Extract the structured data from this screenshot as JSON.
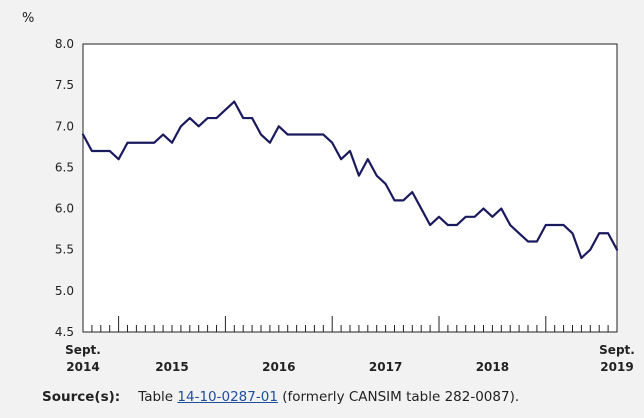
{
  "chart_data": {
    "type": "line",
    "title": "",
    "ylabel": "%",
    "xlabel": "",
    "ylim": [
      4.5,
      8.0
    ],
    "yticks": [
      4.5,
      5.0,
      5.5,
      6.0,
      6.5,
      7.0,
      7.5,
      8.0
    ],
    "ytick_labels": [
      "4.5",
      "5.0",
      "5.5",
      "6.0",
      "6.5",
      "7.0",
      "7.5",
      "8.0"
    ],
    "x_range": [
      "2014-09",
      "2019-09"
    ],
    "x_labels": [
      {
        "month": "2014-09",
        "line1": "Sept.",
        "line2": "2014"
      },
      {
        "month": "2015-07",
        "line1": "",
        "line2": "2015"
      },
      {
        "month": "2016-07",
        "line1": "",
        "line2": "2016"
      },
      {
        "month": "2017-07",
        "line1": "",
        "line2": "2017"
      },
      {
        "month": "2018-07",
        "line1": "",
        "line2": "2018"
      },
      {
        "month": "2019-09",
        "line1": "Sept.",
        "line2": "2019"
      }
    ],
    "year_boundaries": [
      "2015-01",
      "2016-01",
      "2017-01",
      "2018-01",
      "2019-01"
    ],
    "grid": false,
    "color": "#1a1a5e",
    "series": [
      {
        "x": [
          "2014-09",
          "2014-10",
          "2014-11",
          "2014-12",
          "2015-01",
          "2015-02",
          "2015-03",
          "2015-04",
          "2015-05",
          "2015-06",
          "2015-07",
          "2015-08",
          "2015-09",
          "2015-10",
          "2015-11",
          "2015-12",
          "2016-01",
          "2016-02",
          "2016-03",
          "2016-04",
          "2016-05",
          "2016-06",
          "2016-07",
          "2016-08",
          "2016-09",
          "2016-10",
          "2016-11",
          "2016-12",
          "2017-01",
          "2017-02",
          "2017-03",
          "2017-04",
          "2017-05",
          "2017-06",
          "2017-07",
          "2017-08",
          "2017-09",
          "2017-10",
          "2017-11",
          "2017-12",
          "2018-01",
          "2018-02",
          "2018-03",
          "2018-04",
          "2018-05",
          "2018-06",
          "2018-07",
          "2018-08",
          "2018-09",
          "2018-10",
          "2018-11",
          "2018-12",
          "2019-01",
          "2019-02",
          "2019-03",
          "2019-04",
          "2019-05",
          "2019-06",
          "2019-07",
          "2019-08",
          "2019-09"
        ],
        "values": [
          6.9,
          6.7,
          6.7,
          6.7,
          6.6,
          6.8,
          6.8,
          6.8,
          6.8,
          6.9,
          6.8,
          7.0,
          7.1,
          7.0,
          7.1,
          7.1,
          7.2,
          7.3,
          7.1,
          7.1,
          6.9,
          6.8,
          7.0,
          6.9,
          6.9,
          6.9,
          6.9,
          6.9,
          6.8,
          6.6,
          6.7,
          6.4,
          6.6,
          6.4,
          6.3,
          6.1,
          6.1,
          6.2,
          6.0,
          5.8,
          5.9,
          5.8,
          5.8,
          5.9,
          5.9,
          6.0,
          5.9,
          6.0,
          5.8,
          5.7,
          5.6,
          5.6,
          5.8,
          5.8,
          5.8,
          5.7,
          5.4,
          5.5,
          5.7,
          5.7,
          5.5
        ]
      }
    ]
  },
  "source": {
    "label": "Source(s):",
    "text_before": "Table ",
    "link_text": "14-10-0287-01",
    "text_after": " (formerly CANSIM table 282-0087)."
  }
}
